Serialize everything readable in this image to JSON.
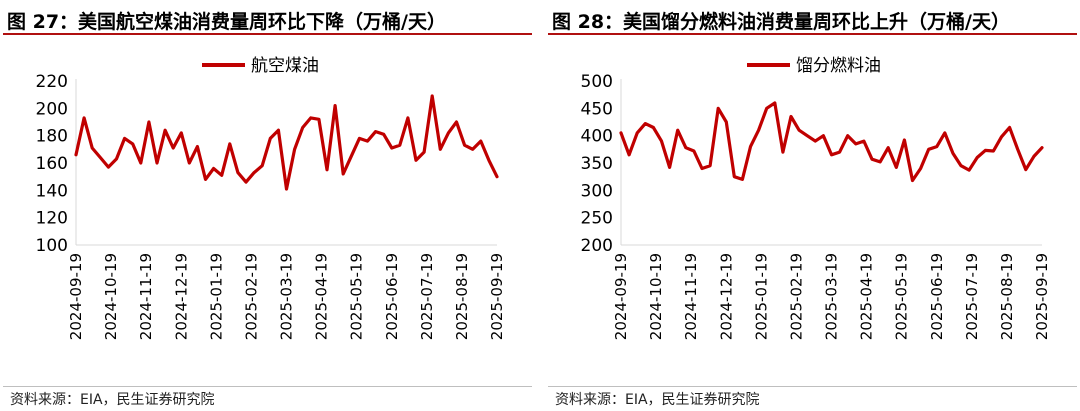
{
  "source_text": "资料来源：EIA，民生证券研究院",
  "colors": {
    "series": "#c00000",
    "title_rule": "#b01010",
    "axis": "#d9d9d9"
  },
  "chart_data": [
    {
      "type": "line",
      "title": "图 27：美国航空煤油消费量周环比下降（万桶/天）",
      "legend": [
        "航空煤油"
      ],
      "legend_position": "top-center",
      "xlabel": "",
      "ylabel": "",
      "ylim": [
        100,
        220
      ],
      "yticks": [
        100,
        120,
        140,
        160,
        180,
        200,
        220
      ],
      "xticks": [
        "2024-09-19",
        "2024-10-19",
        "2024-11-19",
        "2024-12-19",
        "2025-01-19",
        "2025-02-19",
        "2025-03-19",
        "2025-04-19",
        "2025-05-19",
        "2025-06-19",
        "2025-07-19",
        "2025-08-19",
        "2025-09-19"
      ],
      "series": [
        {
          "name": "航空煤油",
          "values": [
            166,
            193,
            171,
            164,
            157,
            163,
            178,
            174,
            160,
            190,
            160,
            184,
            171,
            182,
            160,
            172,
            148,
            156,
            151,
            174,
            153,
            146,
            153,
            158,
            178,
            184,
            141,
            170,
            186,
            193,
            192,
            155,
            202,
            152,
            165,
            178,
            176,
            183,
            181,
            171,
            173,
            193,
            162,
            168,
            209,
            170,
            182,
            190,
            173,
            170,
            176,
            162,
            150
          ]
        }
      ]
    },
    {
      "type": "line",
      "title": "图 28：美国馏分燃料油消费量周环比上升（万桶/天）",
      "legend": [
        "馏分燃料油"
      ],
      "legend_position": "top-center",
      "xlabel": "",
      "ylabel": "",
      "ylim": [
        200,
        500
      ],
      "yticks": [
        200,
        250,
        300,
        350,
        400,
        450,
        500
      ],
      "xticks": [
        "2024-09-19",
        "2024-10-19",
        "2024-11-19",
        "2024-12-19",
        "2025-01-19",
        "2025-02-19",
        "2025-03-19",
        "2025-04-19",
        "2025-05-19",
        "2025-06-19",
        "2025-07-19",
        "2025-08-19",
        "2025-09-19"
      ],
      "series": [
        {
          "name": "馏分燃料油",
          "values": [
            405,
            365,
            405,
            422,
            415,
            390,
            342,
            410,
            378,
            372,
            340,
            345,
            450,
            425,
            325,
            320,
            380,
            410,
            450,
            460,
            370,
            435,
            410,
            400,
            390,
            400,
            365,
            370,
            400,
            385,
            390,
            357,
            352,
            378,
            342,
            392,
            318,
            340,
            375,
            380,
            405,
            368,
            345,
            337,
            360,
            373,
            372,
            398,
            415,
            375,
            338,
            362,
            378
          ]
        }
      ]
    }
  ]
}
